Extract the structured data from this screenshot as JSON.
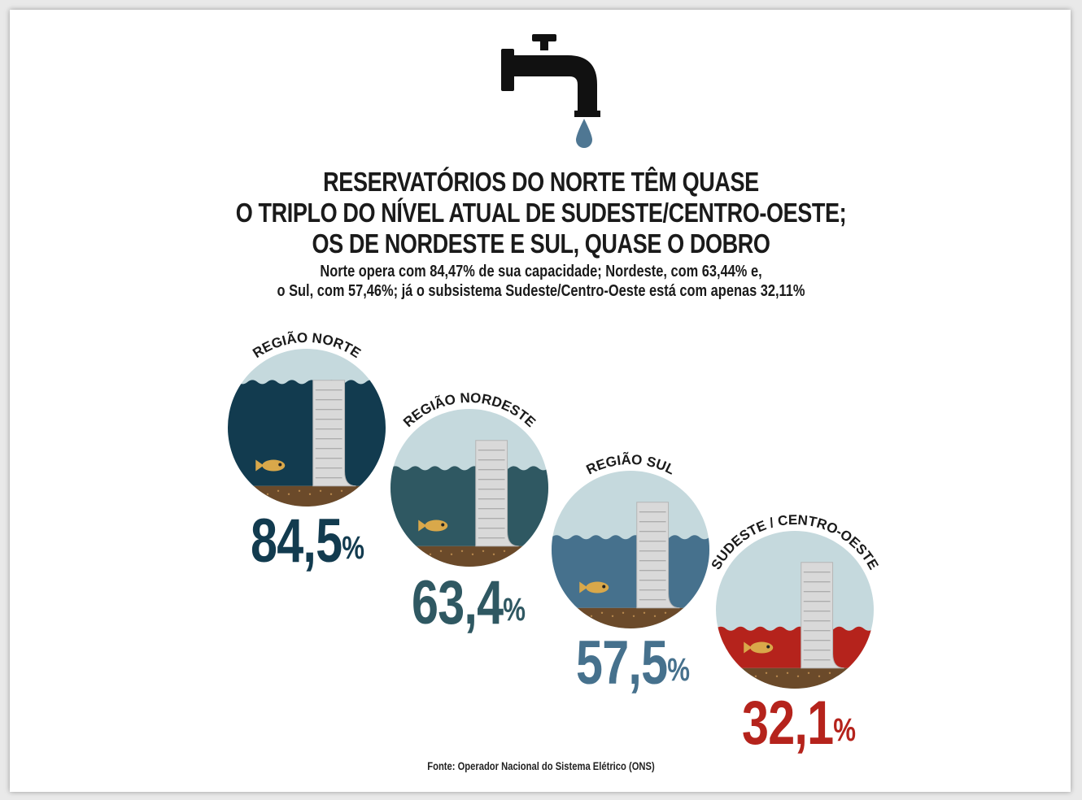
{
  "headline": [
    "RESERVATÓRIOS DO NORTE TÊM QUASE",
    "O TRIPLO DO NÍVEL ATUAL DE SUDESTE/CENTRO-OESTE;",
    "OS DE NORDESTE E SUL, QUASE O DOBRO"
  ],
  "subtitle": [
    "Norte opera com 84,47% de sua capacidade; Nordeste, com 63,44% e,",
    "o Sul, com 57,46%; já o subsistema Sudeste/Centro-Oeste está com apenas 32,11%"
  ],
  "icons": {
    "faucet": "faucet-icon",
    "drop": "water-drop-icon",
    "fish": "fish-icon",
    "dam": "dam-icon"
  },
  "colors": {
    "sky": "#c5d9dd",
    "soil": "#6b4a2a",
    "dam": "#d9d9d9",
    "fish": "#d9a84a",
    "drop": "#4f7793",
    "norte": "#123b4f",
    "nordeste": "#2f5862",
    "sul": "#46718d",
    "sudeste": "#b5231c"
  },
  "regions": [
    {
      "label": "REGIÃO NORTE",
      "value": "84,5",
      "unit": "%",
      "fill": 0.845
    },
    {
      "label": "REGIÃO NORDESTE",
      "value": "63,4",
      "unit": "%",
      "fill": 0.634
    },
    {
      "label": "REGIÃO SUL",
      "value": "57,5",
      "unit": "%",
      "fill": 0.575
    },
    {
      "label": "SUDESTE / CENTRO-OESTE",
      "value": "32,1",
      "unit": "%",
      "fill": 0.321
    }
  ],
  "source": "Fonte: Operador Nacional do Sistema Elétrico (ONS)"
}
